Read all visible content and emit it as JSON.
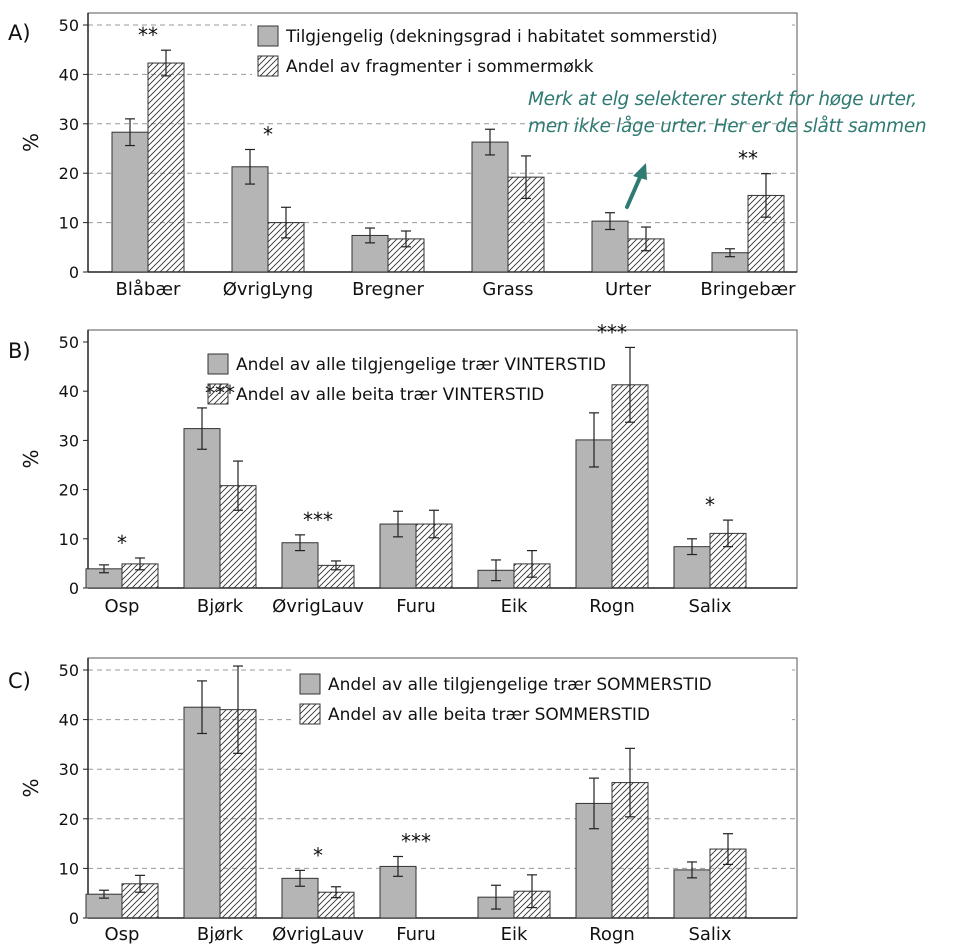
{
  "annotation": {
    "line1": "Merk at elg selekterer sterkt for høge urter,",
    "line2": "men ikke låge urter. Her er de slått sammen",
    "color": "#2f7a72"
  },
  "colors": {
    "available_fill": "#b5b5b5",
    "used_fill": "#ffffff",
    "grid": "#9a9a9a",
    "text": "#111111"
  },
  "chart_data": [
    {
      "panel": "A)",
      "type": "bar",
      "ylabel": "%",
      "ylim": [
        0,
        50
      ],
      "yticks": [
        0,
        10,
        20,
        30,
        40,
        50
      ],
      "grid": true,
      "legend_position": "top-right",
      "categories": [
        "Blåbær",
        "ØvrigLyng",
        "Bregner",
        "Grass",
        "Urter",
        "Bringebær"
      ],
      "series": [
        {
          "name": "Tilgjengelig (dekningsgrad i habitatet sommerstid)",
          "pattern": "solid",
          "values": [
            28.3,
            21.3,
            7.4,
            26.3,
            10.3,
            3.9
          ],
          "errors": [
            2.7,
            3.5,
            1.5,
            2.6,
            1.7,
            0.8
          ]
        },
        {
          "name": "Andel av fragmenter i sommermøkk",
          "pattern": "hatched",
          "values": [
            42.3,
            10.0,
            6.7,
            19.2,
            6.7,
            15.5
          ],
          "errors": [
            2.6,
            3.1,
            1.6,
            4.3,
            2.4,
            4.4
          ]
        }
      ],
      "significance": [
        "**",
        "*",
        "",
        "",
        "",
        "**"
      ]
    },
    {
      "panel": "B)",
      "type": "bar",
      "ylabel": "%",
      "ylim": [
        0,
        50
      ],
      "yticks": [
        0,
        10,
        20,
        30,
        40,
        50
      ],
      "grid": false,
      "legend_position": "top-center",
      "categories": [
        "Osp",
        "Bjørk",
        "ØvrigLauv",
        "Furu",
        "Eik",
        "Rogn",
        "Salix"
      ],
      "series": [
        {
          "name": "Andel av alle tilgjengelige trær VINTERSTID",
          "pattern": "solid",
          "values": [
            3.9,
            32.4,
            9.2,
            13.0,
            3.6,
            30.1,
            8.4
          ],
          "errors": [
            0.8,
            4.2,
            1.6,
            2.6,
            2.1,
            5.5,
            1.6
          ]
        },
        {
          "name": "Andel av alle beita trær VINTERSTID",
          "pattern": "hatched",
          "values": [
            4.9,
            20.8,
            4.6,
            13.0,
            4.9,
            41.3,
            11.1
          ],
          "errors": [
            1.2,
            5.0,
            0.9,
            2.8,
            2.7,
            7.6,
            2.7
          ]
        }
      ],
      "significance": [
        "*",
        "***",
        "***",
        "",
        "",
        "***",
        "*"
      ]
    },
    {
      "panel": "C)",
      "type": "bar",
      "ylabel": "%",
      "ylim": [
        0,
        50
      ],
      "yticks": [
        0,
        10,
        20,
        30,
        40,
        50
      ],
      "grid": true,
      "legend_position": "top-right",
      "categories": [
        "Osp",
        "Bjørk",
        "ØvrigLauv",
        "Furu",
        "Eik",
        "Rogn",
        "Salix"
      ],
      "series": [
        {
          "name": "Andel av alle tilgjengelige trær SOMMERSTID",
          "pattern": "solid",
          "values": [
            4.8,
            42.5,
            8.0,
            10.4,
            4.2,
            23.1,
            9.7
          ],
          "errors": [
            0.8,
            5.3,
            1.6,
            2.0,
            2.4,
            5.1,
            1.6
          ]
        },
        {
          "name": "Andel av alle beita trær SOMMERSTID",
          "pattern": "hatched",
          "values": [
            6.9,
            42.0,
            5.2,
            0,
            5.4,
            27.3,
            13.9
          ],
          "errors": [
            1.7,
            8.8,
            1.1,
            0,
            3.3,
            6.9,
            3.1
          ]
        }
      ],
      "significance": [
        "",
        "",
        "*",
        "***",
        "",
        "",
        ""
      ]
    }
  ]
}
